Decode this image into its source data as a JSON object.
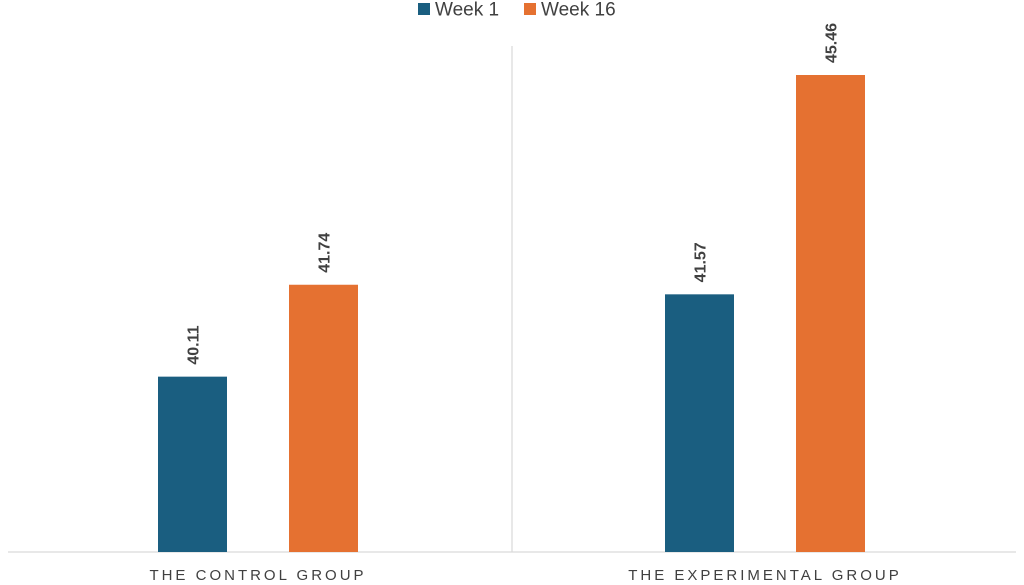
{
  "chart_data": {
    "type": "bar",
    "categories": [
      "THE CONTROL GROUP",
      "THE EXPERIMENTAL GROUP"
    ],
    "series": [
      {
        "name": "Week 1",
        "color": "#1a5e80",
        "values": [
          40.11,
          41.57
        ]
      },
      {
        "name": "Week 16",
        "color": "#e57131",
        "values": [
          41.74,
          45.46
        ]
      }
    ],
    "legend_position": "top-center",
    "grid": false,
    "axis_baseline_value": 37.0
  }
}
